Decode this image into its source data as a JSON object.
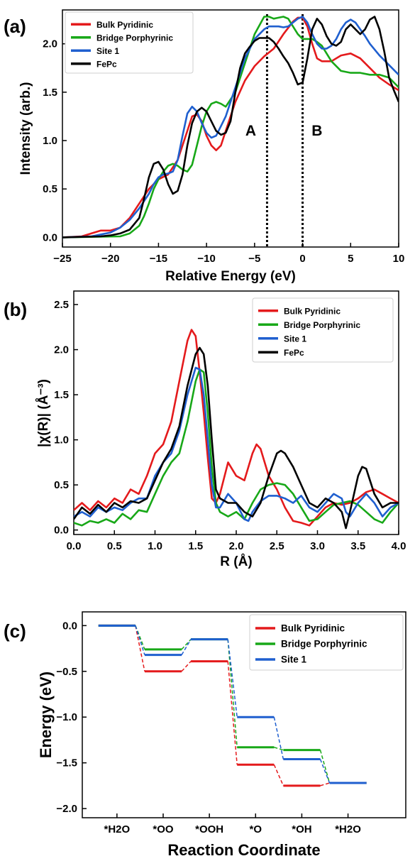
{
  "chart_data": [
    {
      "panel": "(a)",
      "type": "line",
      "xlabel": "Relative Energy (eV)",
      "ylabel": "Intensity (arb.)",
      "xlim": [
        -25,
        10
      ],
      "ylim": [
        -0.1,
        2.35
      ],
      "xticks": [
        -25,
        -20,
        -15,
        -10,
        -5,
        0,
        5,
        10
      ],
      "yticks": [
        0.0,
        0.5,
        1.0,
        1.5,
        2.0
      ],
      "tick_format": [
        0,
        1
      ],
      "legend_loc": "upper left",
      "annotations": [
        {
          "text": "A",
          "x": -5.4,
          "y": 1.05
        },
        {
          "text": "B",
          "x": 1.5,
          "y": 1.05
        }
      ],
      "vlines": [
        -3.7,
        0
      ],
      "series": [
        {
          "name": "Bulk Pyridinic",
          "color": "#e41a1c",
          "x": [
            -25,
            -23,
            -22,
            -21,
            -20,
            -19,
            -18,
            -17,
            -16,
            -15,
            -14,
            -13,
            -12,
            -11.5,
            -11,
            -10.5,
            -10,
            -9.5,
            -9,
            -8.5,
            -8,
            -7,
            -6,
            -5,
            -4,
            -3,
            -2,
            -1,
            -0.5,
            0,
            0.5,
            1,
            1.5,
            2,
            3,
            4,
            5,
            6,
            7,
            8,
            9,
            10
          ],
          "y": [
            0.0,
            0.01,
            0.04,
            0.07,
            0.07,
            0.1,
            0.2,
            0.35,
            0.5,
            0.6,
            0.65,
            0.8,
            1.1,
            1.25,
            1.27,
            1.2,
            1.05,
            0.95,
            0.9,
            0.95,
            1.1,
            1.4,
            1.62,
            1.77,
            1.87,
            1.95,
            2.1,
            2.23,
            2.27,
            2.27,
            2.18,
            2.0,
            1.85,
            1.82,
            1.82,
            1.88,
            1.9,
            1.85,
            1.75,
            1.65,
            1.58,
            1.52
          ]
        },
        {
          "name": "Bridge Porphyrinic",
          "color": "#18a818",
          "x": [
            -25,
            -19,
            -18,
            -17,
            -16.5,
            -16,
            -15.5,
            -15,
            -14.5,
            -14,
            -13.5,
            -13,
            -12.5,
            -12,
            -11.5,
            -11,
            -10.5,
            -10,
            -9.5,
            -9,
            -8.5,
            -8,
            -7,
            -6,
            -5,
            -4,
            -3.5,
            -3,
            -2.5,
            -2,
            -1.5,
            -1,
            -0.5,
            0,
            0.5,
            1,
            1.5,
            2,
            3,
            4,
            5,
            6,
            7,
            8,
            9,
            10
          ],
          "y": [
            0.0,
            0.01,
            0.04,
            0.12,
            0.22,
            0.35,
            0.5,
            0.6,
            0.68,
            0.74,
            0.76,
            0.74,
            0.7,
            0.68,
            0.75,
            0.95,
            1.15,
            1.3,
            1.38,
            1.4,
            1.38,
            1.35,
            1.5,
            1.8,
            2.1,
            2.28,
            2.28,
            2.26,
            2.27,
            2.28,
            2.26,
            2.18,
            2.1,
            2.05,
            2.05,
            2.05,
            2.02,
            1.98,
            1.82,
            1.72,
            1.7,
            1.7,
            1.68,
            1.68,
            1.65,
            1.55
          ]
        },
        {
          "name": "Site 1",
          "color": "#1f5fcf",
          "x": [
            -25,
            -22,
            -21,
            -20,
            -19,
            -18,
            -17,
            -16,
            -15.5,
            -15,
            -14.5,
            -14,
            -13.5,
            -13,
            -12.5,
            -12,
            -11.5,
            -11,
            -10.5,
            -10,
            -9.5,
            -9,
            -8.5,
            -8,
            -7,
            -6,
            -5,
            -4,
            -3.5,
            -3,
            -2.5,
            -2,
            -1.5,
            -1,
            -0.5,
            0,
            0.5,
            1,
            1.5,
            2,
            2.5,
            3,
            3.5,
            4,
            4.5,
            5,
            5.5,
            6,
            6.5,
            7,
            8,
            9,
            10
          ],
          "y": [
            0.0,
            0.01,
            0.03,
            0.05,
            0.1,
            0.18,
            0.3,
            0.45,
            0.55,
            0.62,
            0.65,
            0.66,
            0.68,
            0.8,
            1.05,
            1.28,
            1.35,
            1.3,
            1.18,
            1.08,
            1.03,
            1.05,
            1.15,
            1.25,
            1.55,
            1.85,
            2.05,
            2.15,
            2.18,
            2.18,
            2.18,
            2.17,
            2.18,
            2.22,
            2.26,
            2.28,
            2.22,
            2.1,
            2.0,
            1.95,
            1.95,
            1.98,
            2.05,
            2.15,
            2.22,
            2.25,
            2.22,
            2.15,
            2.08,
            2.0,
            1.88,
            1.78,
            1.68
          ]
        },
        {
          "name": "FePc",
          "color": "#000000",
          "x": [
            -25,
            -21,
            -20,
            -19,
            -18,
            -17,
            -16.5,
            -16,
            -15.5,
            -15,
            -14.5,
            -14,
            -13.5,
            -13,
            -12.5,
            -12,
            -11.5,
            -11,
            -10.5,
            -10,
            -9.5,
            -9,
            -8.5,
            -8,
            -7.5,
            -7,
            -6.5,
            -6,
            -5.5,
            -5,
            -4.5,
            -4,
            -3.5,
            -3,
            -2.5,
            -2,
            -1.5,
            -1,
            -0.5,
            0,
            0.5,
            1,
            1.5,
            2,
            2.5,
            3,
            3.5,
            4,
            4.5,
            5,
            5.5,
            6,
            6.5,
            7,
            7.5,
            8,
            8.5,
            9,
            9.5,
            10
          ],
          "y": [
            0.0,
            0.01,
            0.02,
            0.04,
            0.08,
            0.2,
            0.4,
            0.62,
            0.76,
            0.78,
            0.7,
            0.55,
            0.45,
            0.48,
            0.65,
            0.95,
            1.18,
            1.3,
            1.34,
            1.3,
            1.2,
            1.1,
            1.06,
            1.08,
            1.2,
            1.5,
            1.75,
            1.9,
            1.97,
            2.03,
            2.06,
            2.06,
            2.06,
            2.02,
            1.95,
            1.87,
            1.8,
            1.7,
            1.58,
            1.6,
            1.85,
            2.15,
            2.26,
            2.2,
            2.08,
            2.0,
            1.98,
            2.02,
            2.15,
            2.2,
            2.15,
            2.1,
            2.15,
            2.25,
            2.28,
            2.15,
            1.92,
            1.65,
            1.52,
            1.4
          ]
        }
      ]
    },
    {
      "panel": "(b)",
      "type": "line",
      "xlabel": "R (Å)",
      "ylabel": "|χ(R)| (Å⁻³)",
      "xlim": [
        0.0,
        4.0
      ],
      "ylim": [
        -0.05,
        2.65
      ],
      "xticks": [
        0.0,
        0.5,
        1.0,
        1.5,
        2.0,
        2.5,
        3.0,
        3.5,
        4.0
      ],
      "yticks": [
        0.0,
        0.5,
        1.0,
        1.5,
        2.0,
        2.5
      ],
      "tick_format": [
        1,
        1
      ],
      "legend_loc": "upper right",
      "series": [
        {
          "name": "Bulk Pyridinic",
          "color": "#e41a1c",
          "x": [
            0,
            0.1,
            0.2,
            0.3,
            0.4,
            0.5,
            0.6,
            0.7,
            0.8,
            0.9,
            1.0,
            1.1,
            1.2,
            1.3,
            1.4,
            1.45,
            1.5,
            1.55,
            1.6,
            1.65,
            1.7,
            1.75,
            1.8,
            1.9,
            2.0,
            2.1,
            2.2,
            2.25,
            2.3,
            2.4,
            2.5,
            2.6,
            2.7,
            2.8,
            2.9,
            2.95,
            3.0,
            3.1,
            3.2,
            3.3,
            3.4,
            3.5,
            3.6,
            3.7,
            3.8,
            3.9,
            4.0
          ],
          "y": [
            0.22,
            0.3,
            0.22,
            0.32,
            0.25,
            0.35,
            0.3,
            0.45,
            0.4,
            0.6,
            0.85,
            0.95,
            1.2,
            1.65,
            2.1,
            2.22,
            2.15,
            1.75,
            1.3,
            0.8,
            0.35,
            0.3,
            0.4,
            0.75,
            0.6,
            0.55,
            0.85,
            0.95,
            0.9,
            0.6,
            0.45,
            0.25,
            0.1,
            0.08,
            0.05,
            0.1,
            0.15,
            0.25,
            0.3,
            0.28,
            0.3,
            0.35,
            0.42,
            0.45,
            0.4,
            0.35,
            0.3
          ]
        },
        {
          "name": "Bridge Porphyrinic",
          "color": "#18a818",
          "x": [
            0,
            0.1,
            0.2,
            0.3,
            0.4,
            0.5,
            0.6,
            0.7,
            0.8,
            0.9,
            1.0,
            1.1,
            1.2,
            1.3,
            1.4,
            1.5,
            1.55,
            1.6,
            1.65,
            1.7,
            1.75,
            1.8,
            1.9,
            2.0,
            2.1,
            2.2,
            2.3,
            2.4,
            2.5,
            2.6,
            2.7,
            2.8,
            2.9,
            3.0,
            3.1,
            3.2,
            3.3,
            3.4,
            3.5,
            3.6,
            3.7,
            3.8,
            3.9,
            4.0
          ],
          "y": [
            0.08,
            0.05,
            0.1,
            0.08,
            0.12,
            0.08,
            0.18,
            0.12,
            0.22,
            0.2,
            0.4,
            0.6,
            0.75,
            0.85,
            1.2,
            1.65,
            1.78,
            1.75,
            1.3,
            0.7,
            0.3,
            0.2,
            0.15,
            0.2,
            0.12,
            0.3,
            0.45,
            0.5,
            0.52,
            0.5,
            0.4,
            0.25,
            0.1,
            0.12,
            0.2,
            0.28,
            0.3,
            0.32,
            0.28,
            0.2,
            0.12,
            0.08,
            0.2,
            0.3
          ]
        },
        {
          "name": "Site 1",
          "color": "#1f5fcf",
          "x": [
            0,
            0.1,
            0.2,
            0.3,
            0.4,
            0.5,
            0.6,
            0.7,
            0.8,
            0.9,
            1.0,
            1.1,
            1.2,
            1.3,
            1.4,
            1.5,
            1.55,
            1.6,
            1.65,
            1.7,
            1.75,
            1.8,
            1.9,
            2.0,
            2.1,
            2.15,
            2.2,
            2.3,
            2.4,
            2.5,
            2.6,
            2.7,
            2.8,
            2.9,
            3.0,
            3.1,
            3.2,
            3.3,
            3.35,
            3.4,
            3.5,
            3.6,
            3.7,
            3.8,
            3.9,
            4.0
          ],
          "y": [
            0.15,
            0.2,
            0.15,
            0.25,
            0.2,
            0.25,
            0.22,
            0.3,
            0.35,
            0.35,
            0.6,
            0.75,
            0.85,
            1.1,
            1.5,
            1.8,
            1.78,
            1.5,
            1.0,
            0.5,
            0.25,
            0.25,
            0.4,
            0.3,
            0.12,
            0.1,
            0.2,
            0.32,
            0.38,
            0.38,
            0.35,
            0.3,
            0.38,
            0.25,
            0.2,
            0.3,
            0.4,
            0.35,
            0.2,
            0.15,
            0.3,
            0.4,
            0.3,
            0.15,
            0.25,
            0.3
          ]
        },
        {
          "name": "FePc",
          "color": "#000000",
          "x": [
            0,
            0.1,
            0.2,
            0.3,
            0.4,
            0.5,
            0.6,
            0.7,
            0.8,
            0.9,
            1.0,
            1.1,
            1.2,
            1.3,
            1.4,
            1.5,
            1.55,
            1.6,
            1.65,
            1.7,
            1.75,
            1.8,
            1.9,
            2.0,
            2.1,
            2.2,
            2.3,
            2.4,
            2.5,
            2.55,
            2.6,
            2.7,
            2.8,
            2.9,
            3.0,
            3.1,
            3.2,
            3.3,
            3.35,
            3.4,
            3.5,
            3.55,
            3.6,
            3.7,
            3.8,
            3.9,
            4.0
          ],
          "y": [
            0.12,
            0.25,
            0.18,
            0.28,
            0.2,
            0.3,
            0.25,
            0.32,
            0.3,
            0.35,
            0.55,
            0.75,
            0.9,
            1.15,
            1.6,
            1.95,
            2.02,
            1.95,
            1.6,
            1.0,
            0.45,
            0.35,
            0.3,
            0.3,
            0.2,
            0.15,
            0.3,
            0.6,
            0.85,
            0.88,
            0.85,
            0.7,
            0.5,
            0.3,
            0.25,
            0.35,
            0.3,
            0.2,
            0.02,
            0.2,
            0.6,
            0.7,
            0.68,
            0.4,
            0.25,
            0.3,
            0.3
          ]
        }
      ]
    },
    {
      "panel": "(c)",
      "type": "line",
      "style": "step-levels",
      "xlabel": "Reaction Coordinate",
      "ylabel": "Energy (eV)",
      "xlim": [
        0,
        7
      ],
      "ylim": [
        -2.1,
        0.15
      ],
      "categories": [
        "*H2O",
        "*OO",
        "*OOH",
        "*O",
        "*OH",
        "*H2O"
      ],
      "category_x": [
        0.75,
        1.75,
        2.75,
        3.75,
        4.75,
        5.75
      ],
      "yticks": [
        0.0,
        -0.5,
        -1.0,
        -1.5,
        -2.0
      ],
      "tick_format": [
        0,
        1
      ],
      "legend_loc": "upper right",
      "level_half_width": 0.4,
      "series": [
        {
          "name": "Bulk Pyridinic",
          "color": "#e41a1c",
          "values": [
            0.0,
            -0.5,
            -0.39,
            -1.52,
            -1.75,
            -1.72
          ]
        },
        {
          "name": "Bridge Porphyrinic",
          "color": "#18a818",
          "values": [
            0.0,
            -0.26,
            -0.15,
            -1.33,
            -1.36,
            -1.72
          ]
        },
        {
          "name": "Site 1",
          "color": "#1f5fcf",
          "values": [
            0.0,
            -0.32,
            -0.15,
            -1.0,
            -1.46,
            -1.72
          ]
        }
      ]
    }
  ]
}
